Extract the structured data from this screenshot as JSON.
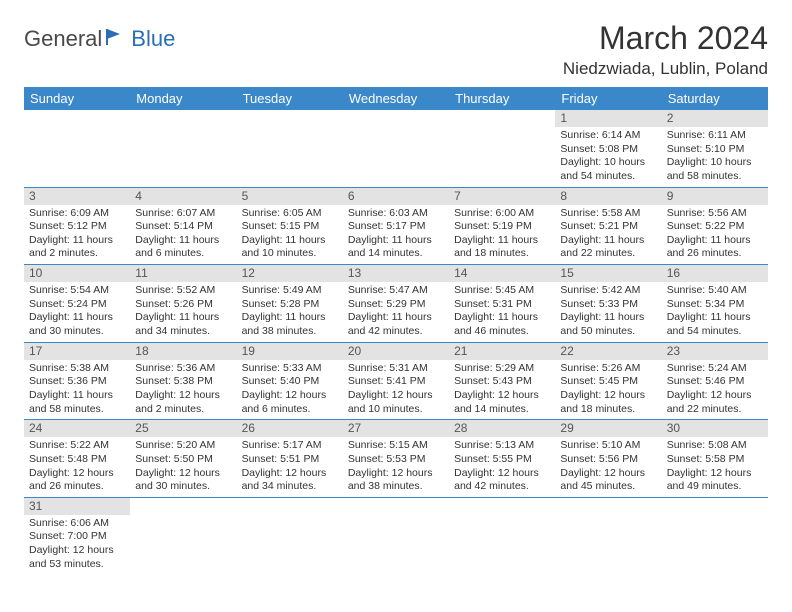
{
  "logo": {
    "general": "General",
    "blue": "Blue"
  },
  "title": "March 2024",
  "location": "Niedzwiada, Lublin, Poland",
  "colors": {
    "header_bg": "#3a88c9",
    "header_text": "#ffffff",
    "daynum_bg": "#e3e3e3",
    "daynum_text": "#555555",
    "border": "#3a88c9",
    "logo_general": "#4a4a4a",
    "logo_blue": "#2a6fb5"
  },
  "weekdays": [
    "Sunday",
    "Monday",
    "Tuesday",
    "Wednesday",
    "Thursday",
    "Friday",
    "Saturday"
  ],
  "first_weekday_index": 5,
  "days": [
    {
      "n": 1,
      "sunrise": "6:14 AM",
      "sunset": "5:08 PM",
      "daylight": "10 hours and 54 minutes."
    },
    {
      "n": 2,
      "sunrise": "6:11 AM",
      "sunset": "5:10 PM",
      "daylight": "10 hours and 58 minutes."
    },
    {
      "n": 3,
      "sunrise": "6:09 AM",
      "sunset": "5:12 PM",
      "daylight": "11 hours and 2 minutes."
    },
    {
      "n": 4,
      "sunrise": "6:07 AM",
      "sunset": "5:14 PM",
      "daylight": "11 hours and 6 minutes."
    },
    {
      "n": 5,
      "sunrise": "6:05 AM",
      "sunset": "5:15 PM",
      "daylight": "11 hours and 10 minutes."
    },
    {
      "n": 6,
      "sunrise": "6:03 AM",
      "sunset": "5:17 PM",
      "daylight": "11 hours and 14 minutes."
    },
    {
      "n": 7,
      "sunrise": "6:00 AM",
      "sunset": "5:19 PM",
      "daylight": "11 hours and 18 minutes."
    },
    {
      "n": 8,
      "sunrise": "5:58 AM",
      "sunset": "5:21 PM",
      "daylight": "11 hours and 22 minutes."
    },
    {
      "n": 9,
      "sunrise": "5:56 AM",
      "sunset": "5:22 PM",
      "daylight": "11 hours and 26 minutes."
    },
    {
      "n": 10,
      "sunrise": "5:54 AM",
      "sunset": "5:24 PM",
      "daylight": "11 hours and 30 minutes."
    },
    {
      "n": 11,
      "sunrise": "5:52 AM",
      "sunset": "5:26 PM",
      "daylight": "11 hours and 34 minutes."
    },
    {
      "n": 12,
      "sunrise": "5:49 AM",
      "sunset": "5:28 PM",
      "daylight": "11 hours and 38 minutes."
    },
    {
      "n": 13,
      "sunrise": "5:47 AM",
      "sunset": "5:29 PM",
      "daylight": "11 hours and 42 minutes."
    },
    {
      "n": 14,
      "sunrise": "5:45 AM",
      "sunset": "5:31 PM",
      "daylight": "11 hours and 46 minutes."
    },
    {
      "n": 15,
      "sunrise": "5:42 AM",
      "sunset": "5:33 PM",
      "daylight": "11 hours and 50 minutes."
    },
    {
      "n": 16,
      "sunrise": "5:40 AM",
      "sunset": "5:34 PM",
      "daylight": "11 hours and 54 minutes."
    },
    {
      "n": 17,
      "sunrise": "5:38 AM",
      "sunset": "5:36 PM",
      "daylight": "11 hours and 58 minutes."
    },
    {
      "n": 18,
      "sunrise": "5:36 AM",
      "sunset": "5:38 PM",
      "daylight": "12 hours and 2 minutes."
    },
    {
      "n": 19,
      "sunrise": "5:33 AM",
      "sunset": "5:40 PM",
      "daylight": "12 hours and 6 minutes."
    },
    {
      "n": 20,
      "sunrise": "5:31 AM",
      "sunset": "5:41 PM",
      "daylight": "12 hours and 10 minutes."
    },
    {
      "n": 21,
      "sunrise": "5:29 AM",
      "sunset": "5:43 PM",
      "daylight": "12 hours and 14 minutes."
    },
    {
      "n": 22,
      "sunrise": "5:26 AM",
      "sunset": "5:45 PM",
      "daylight": "12 hours and 18 minutes."
    },
    {
      "n": 23,
      "sunrise": "5:24 AM",
      "sunset": "5:46 PM",
      "daylight": "12 hours and 22 minutes."
    },
    {
      "n": 24,
      "sunrise": "5:22 AM",
      "sunset": "5:48 PM",
      "daylight": "12 hours and 26 minutes."
    },
    {
      "n": 25,
      "sunrise": "5:20 AM",
      "sunset": "5:50 PM",
      "daylight": "12 hours and 30 minutes."
    },
    {
      "n": 26,
      "sunrise": "5:17 AM",
      "sunset": "5:51 PM",
      "daylight": "12 hours and 34 minutes."
    },
    {
      "n": 27,
      "sunrise": "5:15 AM",
      "sunset": "5:53 PM",
      "daylight": "12 hours and 38 minutes."
    },
    {
      "n": 28,
      "sunrise": "5:13 AM",
      "sunset": "5:55 PM",
      "daylight": "12 hours and 42 minutes."
    },
    {
      "n": 29,
      "sunrise": "5:10 AM",
      "sunset": "5:56 PM",
      "daylight": "12 hours and 45 minutes."
    },
    {
      "n": 30,
      "sunrise": "5:08 AM",
      "sunset": "5:58 PM",
      "daylight": "12 hours and 49 minutes."
    },
    {
      "n": 31,
      "sunrise": "6:06 AM",
      "sunset": "7:00 PM",
      "daylight": "12 hours and 53 minutes."
    }
  ],
  "labels": {
    "sunrise": "Sunrise:",
    "sunset": "Sunset:",
    "daylight": "Daylight:"
  }
}
